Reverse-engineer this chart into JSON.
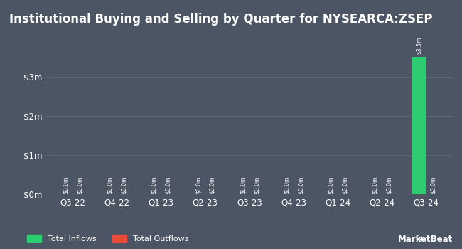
{
  "title": "Institutional Buying and Selling by Quarter for NYSEARCA:ZSEP",
  "quarters": [
    "Q3-22",
    "Q4-22",
    "Q1-23",
    "Q2-23",
    "Q3-23",
    "Q4-23",
    "Q1-24",
    "Q2-24",
    "Q3-24"
  ],
  "inflows": [
    0,
    0,
    0,
    0,
    0,
    0,
    0,
    0,
    3500000
  ],
  "outflows": [
    0,
    0,
    0,
    0,
    0,
    0,
    0,
    0,
    0
  ],
  "inflow_color": "#2ecc71",
  "outflow_color": "#e74c3c",
  "background_color": "#4b5563",
  "text_color": "#ffffff",
  "grid_color": "#5d6a7a",
  "ylim": [
    0,
    4000000
  ],
  "yticks": [
    0,
    1000000,
    2000000,
    3000000
  ],
  "bar_width": 0.32,
  "legend_inflows": "Total Inflows",
  "legend_outflows": "Total Outflows",
  "watermark": "MarketBeat",
  "title_fontsize": 12,
  "axis_fontsize": 8.5,
  "label_fontsize": 5.5
}
